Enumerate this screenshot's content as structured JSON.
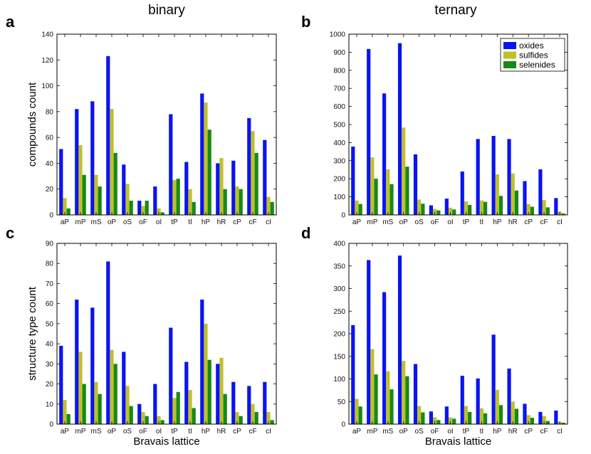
{
  "figure": {
    "column_titles": [
      "binary",
      "ternary"
    ],
    "colors": {
      "oxides": "#0a14f0",
      "sulfides": "#c0c02a",
      "selenides": "#168a16"
    },
    "legend_entries": [
      "oxides",
      "sulfides",
      "selenides"
    ]
  },
  "chart_data": [
    {
      "panel": "a",
      "type": "bar",
      "title": "binary",
      "ylabel": "compounds count",
      "xlabel": "",
      "ylim": [
        0,
        140
      ],
      "yticks": [
        0,
        20,
        40,
        60,
        80,
        100,
        120,
        140
      ],
      "categories": [
        "aP",
        "mP",
        "mS",
        "oP",
        "oS",
        "oF",
        "oI",
        "tP",
        "tI",
        "hP",
        "hR",
        "cP",
        "cF",
        "cI"
      ],
      "series": [
        {
          "name": "oxides",
          "values": [
            51,
            82,
            88,
            123,
            39,
            11,
            22,
            78,
            41,
            94,
            40,
            42,
            75,
            58
          ]
        },
        {
          "name": "sulfides",
          "values": [
            13,
            54,
            31,
            82,
            24,
            7,
            5,
            27,
            20,
            87,
            44,
            22,
            65,
            14
          ]
        },
        {
          "name": "selenides",
          "values": [
            5,
            31,
            22,
            48,
            11,
            11,
            2,
            28,
            10,
            66,
            20,
            20,
            48,
            10
          ]
        }
      ],
      "legend": false
    },
    {
      "panel": "b",
      "type": "bar",
      "title": "ternary",
      "ylabel": "",
      "xlabel": "",
      "ylim": [
        0,
        1000
      ],
      "yticks": [
        0,
        100,
        200,
        300,
        400,
        500,
        600,
        700,
        800,
        900,
        1000
      ],
      "categories": [
        "aP",
        "mP",
        "mS",
        "oP",
        "oS",
        "oF",
        "oI",
        "tP",
        "tI",
        "hP",
        "hR",
        "cP",
        "cF",
        "cI"
      ],
      "series": [
        {
          "name": "oxides",
          "values": [
            378,
            918,
            672,
            950,
            335,
            53,
            90,
            240,
            420,
            437,
            420,
            187,
            252,
            93
          ]
        },
        {
          "name": "sulfides",
          "values": [
            80,
            318,
            252,
            483,
            85,
            33,
            40,
            75,
            80,
            225,
            230,
            60,
            82,
            18
          ]
        },
        {
          "name": "selenides",
          "values": [
            60,
            200,
            170,
            267,
            62,
            25,
            30,
            55,
            72,
            105,
            135,
            45,
            42,
            8
          ]
        }
      ],
      "legend": true,
      "legend_position": "top-right"
    },
    {
      "panel": "c",
      "type": "bar",
      "title": "",
      "ylabel": "structure type count",
      "xlabel": "Bravais lattice",
      "ylim": [
        0,
        90
      ],
      "yticks": [
        0,
        10,
        20,
        30,
        40,
        50,
        60,
        70,
        80,
        90
      ],
      "categories": [
        "aP",
        "mP",
        "mS",
        "oP",
        "oS",
        "oF",
        "oI",
        "tP",
        "tI",
        "hP",
        "hR",
        "cP",
        "cF",
        "cI"
      ],
      "series": [
        {
          "name": "oxides",
          "values": [
            39,
            62,
            58,
            81,
            36,
            10,
            20,
            48,
            31,
            62,
            30,
            21,
            19,
            21
          ]
        },
        {
          "name": "sulfides",
          "values": [
            12,
            36,
            21,
            37,
            19,
            6,
            4,
            13,
            17,
            50,
            33,
            6,
            10,
            6
          ]
        },
        {
          "name": "selenides",
          "values": [
            5,
            20,
            15,
            30,
            9,
            4,
            2,
            16,
            8,
            32,
            15,
            4,
            6,
            2
          ]
        }
      ],
      "legend": false
    },
    {
      "panel": "d",
      "type": "bar",
      "title": "",
      "ylabel": "",
      "xlabel": "Bravais lattice",
      "ylim": [
        0,
        400
      ],
      "yticks": [
        0,
        50,
        100,
        150,
        200,
        250,
        300,
        350,
        400
      ],
      "categories": [
        "aP",
        "mP",
        "mS",
        "oP",
        "oS",
        "oF",
        "oI",
        "tP",
        "tI",
        "hP",
        "hR",
        "cP",
        "cF",
        "cI"
      ],
      "series": [
        {
          "name": "oxides",
          "values": [
            219,
            363,
            292,
            373,
            133,
            28,
            39,
            107,
            101,
            198,
            123,
            45,
            27,
            30
          ]
        },
        {
          "name": "sulfides",
          "values": [
            56,
            166,
            117,
            140,
            40,
            15,
            15,
            40,
            35,
            76,
            50,
            20,
            18,
            5
          ]
        },
        {
          "name": "selenides",
          "values": [
            39,
            110,
            77,
            106,
            26,
            9,
            12,
            27,
            24,
            42,
            34,
            14,
            7,
            3
          ]
        }
      ],
      "legend": false
    }
  ]
}
